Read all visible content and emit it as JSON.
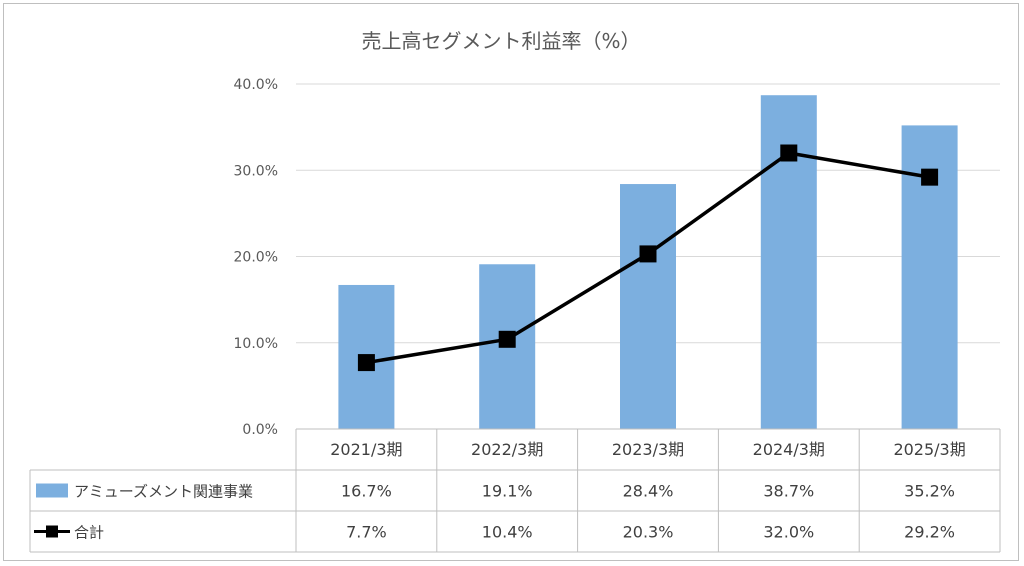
{
  "chart_data": {
    "type": "bar",
    "title": "売上高セグメント利益率（%）",
    "categories": [
      "2021/3期",
      "2022/3期",
      "2023/3期",
      "2024/3期",
      "2025/3期"
    ],
    "ylim": [
      0,
      40
    ],
    "yticks": [
      "0.0%",
      "10.0%",
      "20.0%",
      "30.0%",
      "40.0%"
    ],
    "grid": true,
    "series": [
      {
        "name": "アミューズメント関連事業",
        "kind": "bar",
        "color": "#7cafdf",
        "values": [
          16.7,
          19.1,
          28.4,
          38.7,
          35.2
        ],
        "labels": [
          "16.7%",
          "19.1%",
          "28.4%",
          "38.7%",
          "35.2%"
        ]
      },
      {
        "name": "合計",
        "kind": "line",
        "color": "#000000",
        "values": [
          7.7,
          10.4,
          20.3,
          32.0,
          29.2
        ],
        "labels": [
          "7.7%",
          "10.4%",
          "20.3%",
          "32.0%",
          "29.2%"
        ]
      }
    ]
  }
}
